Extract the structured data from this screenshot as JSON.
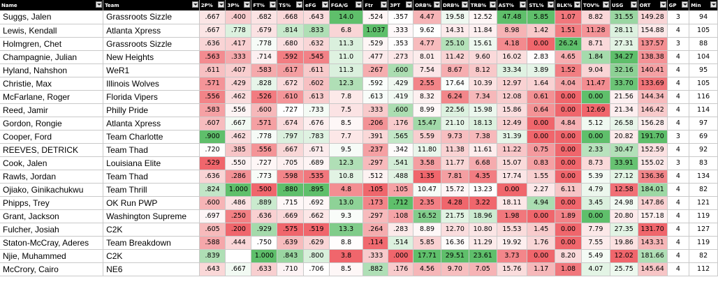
{
  "headers": [
    "Name",
    "Team",
    "2P%",
    "3P%",
    "FT%",
    "TS%",
    "eFG",
    "FGA/G",
    "Ftr",
    "3PT",
    "ORB%",
    "DRB%",
    "TRB%",
    "AST%",
    "STL%",
    "BLK%",
    "TOV%",
    "USG",
    "ORT",
    "GP",
    "Min"
  ],
  "colors": {
    "green_strong": "#5fbf6b",
    "green_light": "#d8efdb",
    "red_strong": "#f0666c",
    "red_light": "#f8cccd",
    "neutral": "#ffffff"
  },
  "rows": [
    [
      "Suggs, Jalen",
      "Grassroots Sizzle",
      ".667",
      ".400",
      ".682",
      ".668",
      ".643",
      "14.0",
      ".524",
      ".357",
      "4.47",
      "19.58",
      "12.52",
      "47.48",
      "5.85",
      "1.07",
      "8.82",
      "31.55",
      "149.28",
      "3",
      "94"
    ],
    [
      "Lewis, Kendall",
      "Atlanta Xpress",
      ".667",
      ".778",
      ".679",
      ".814",
      ".833",
      "6.8",
      "1.037",
      ".333",
      "9.62",
      "14.31",
      "11.84",
      "8.98",
      "1.42",
      "1.51",
      "11.28",
      "28.11",
      "154.88",
      "4",
      "105"
    ],
    [
      "Holmgren, Chet",
      "Grassroots Sizzle",
      ".636",
      ".417",
      ".778",
      ".680",
      ".632",
      "11.3",
      ".529",
      ".353",
      "4.77",
      "25.10",
      "15.61",
      "4.18",
      "0.00",
      "26.24",
      "8.71",
      "27.31",
      "137.57",
      "3",
      "88"
    ],
    [
      "Champagnie, Julian",
      "New Heights",
      ".563",
      ".333",
      ".714",
      ".592",
      ".545",
      "11.0",
      ".477",
      ".273",
      "8.01",
      "11.42",
      "9.60",
      "16.02",
      "2.83",
      "4.65",
      "1.84",
      "34.27",
      "138.38",
      "4",
      "104"
    ],
    [
      "Hyland, Nahshon",
      "WeR1",
      ".611",
      ".407",
      ".583",
      ".617",
      ".611",
      "11.3",
      ".267",
      ".600",
      "7.54",
      "8.67",
      "8.12",
      "33.34",
      "3.89",
      "1.52",
      "9.04",
      "32.16",
      "140.41",
      "4",
      "95"
    ],
    [
      "Christie, Max",
      "Illinois Wolves",
      ".571",
      ".429",
      ".828",
      ".672",
      ".602",
      "12.3",
      ".592",
      ".429",
      "2.55",
      "17.64",
      "10.39",
      "12.97",
      "1.64",
      "4.04",
      "11.47",
      "33.70",
      "133.69",
      "4",
      "105"
    ],
    [
      "McFarlane, Roger",
      "Florida Vipers",
      ".556",
      ".462",
      ".526",
      ".610",
      ".613",
      "7.8",
      ".613",
      ".419",
      "8.32",
      "6.24",
      "7.34",
      "12.08",
      "0.61",
      "0.00",
      "0.00",
      "21.56",
      "144.34",
      "4",
      "116"
    ],
    [
      "Reed, Jamir",
      "Philly Pride",
      ".583",
      ".556",
      ".600",
      ".727",
      ".733",
      "7.5",
      ".333",
      ".600",
      "8.99",
      "22.56",
      "15.98",
      "15.86",
      "0.64",
      "0.00",
      "12.69",
      "21.34",
      "146.42",
      "4",
      "114"
    ],
    [
      "Gordon, Rongie",
      "Atlanta Xpress",
      ".607",
      ".667",
      ".571",
      ".674",
      ".676",
      "8.5",
      ".206",
      ".176",
      "15.47",
      "21.10",
      "18.13",
      "12.49",
      "0.00",
      "4.84",
      "5.12",
      "26.58",
      "156.28",
      "4",
      "97"
    ],
    [
      "Cooper, Ford",
      "Team Charlotte",
      ".900",
      ".462",
      ".778",
      ".797",
      ".783",
      "7.7",
      ".391",
      ".565",
      "5.59",
      "9.73",
      "7.38",
      "31.39",
      "0.00",
      "0.00",
      "0.00",
      "20.82",
      "191.70",
      "3",
      "69"
    ],
    [
      "REEVES, DETRICK",
      "Team Thad",
      ".720",
      ".385",
      ".556",
      ".667",
      ".671",
      "9.5",
      ".237",
      ".342",
      "11.80",
      "11.38",
      "11.61",
      "11.22",
      "0.75",
      "0.00",
      "2.33",
      "30.47",
      "152.59",
      "4",
      "92"
    ],
    [
      "Cook, Jalen",
      "Louisiana Elite",
      ".529",
      ".550",
      ".727",
      ".705",
      ".689",
      "12.3",
      ".297",
      ".541",
      "3.58",
      "11.77",
      "6.68",
      "15.07",
      "0.83",
      "0.00",
      "8.73",
      "33.91",
      "155.02",
      "3",
      "83"
    ],
    [
      "Rawls, Jordan",
      "Team Thad",
      ".636",
      ".286",
      ".773",
      ".598",
      ".535",
      "10.8",
      ".512",
      ".488",
      "1.35",
      "7.81",
      "4.35",
      "17.74",
      "1.55",
      "0.00",
      "5.39",
      "27.12",
      "136.36",
      "4",
      "134"
    ],
    [
      "Ojiako, Ginikachukwu",
      "Team Thrill",
      ".824",
      "1.000",
      ".500",
      ".880",
      ".895",
      "4.8",
      ".105",
      ".105",
      "10.47",
      "15.72",
      "13.23",
      "0.00",
      "2.27",
      "6.11",
      "4.79",
      "12.58",
      "184.01",
      "4",
      "82"
    ],
    [
      "Phipps, Trey",
      "OK Run PWP",
      ".600",
      ".486",
      ".889",
      ".715",
      ".692",
      "13.0",
      ".173",
      ".712",
      "2.35",
      "4.28",
      "3.22",
      "18.11",
      "4.94",
      "0.00",
      "3.45",
      "24.98",
      "147.86",
      "4",
      "121"
    ],
    [
      "Grant, Jackson",
      "Washington Supreme",
      ".697",
      ".250",
      ".636",
      ".669",
      ".662",
      "9.3",
      ".297",
      ".108",
      "16.52",
      "21.75",
      "18.96",
      "1.98",
      "0.00",
      "1.89",
      "0.00",
      "20.80",
      "157.18",
      "4",
      "119"
    ],
    [
      "Fulcher, Josiah",
      "C2K",
      ".605",
      ".200",
      ".929",
      ".575",
      ".519",
      "13.3",
      ".264",
      ".283",
      "8.89",
      "12.70",
      "10.80",
      "15.53",
      "1.45",
      "0.00",
      "7.79",
      "27.35",
      "131.70",
      "4",
      "127"
    ],
    [
      "Staton-McCray, Aderes",
      "Team Breakdown",
      ".588",
      ".444",
      ".750",
      ".639",
      ".629",
      "8.8",
      ".114",
      ".514",
      "5.85",
      "16.36",
      "11.29",
      "19.92",
      "1.76",
      "0.00",
      "7.55",
      "19.86",
      "143.31",
      "4",
      "119"
    ],
    [
      "Njie, Muhammed",
      "C2K",
      ".839",
      "",
      "1.000",
      ".843",
      ".800",
      "3.8",
      ".333",
      ".000",
      "17.71",
      "29.51",
      "23.61",
      "3.73",
      "0.00",
      "8.20",
      "5.49",
      "12.02",
      "181.66",
      "4",
      "82"
    ],
    [
      "McCrory, Cairo",
      "NE6",
      ".643",
      ".667",
      ".633",
      ".710",
      ".706",
      "8.5",
      ".882",
      ".176",
      "4.56",
      "9.70",
      "7.05",
      "15.76",
      "1.17",
      "1.08",
      "4.07",
      "25.75",
      "145.64",
      "4",
      "112"
    ]
  ]
}
